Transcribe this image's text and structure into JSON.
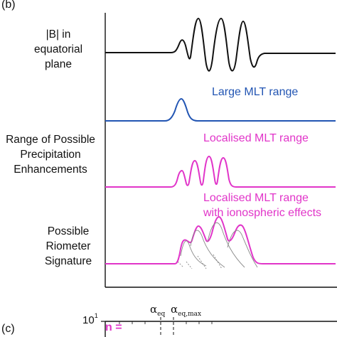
{
  "panel_b": {
    "label": "(b)"
  },
  "panel_c": {
    "label": "(c)"
  },
  "rows": {
    "b_field": {
      "lines": [
        "|B| in",
        "equatorial",
        "plane"
      ]
    },
    "large_mlt": {
      "label": "Large MLT range",
      "color": "#2255b3"
    },
    "localised_mlt": {
      "label": "Localised MLT range",
      "color": "#e135c9"
    },
    "precip": {
      "lines": [
        "Range of Possible",
        "Precipitation",
        "Enhancements"
      ]
    },
    "iono": {
      "lines": [
        "Localised MLT range",
        "with ionospheric effects"
      ],
      "color": "#e135c9"
    },
    "riometer": {
      "lines": [
        "Possible",
        "Riometer",
        "Signature"
      ]
    }
  },
  "bottom": {
    "tick_base": "10",
    "tick_exp": "1",
    "alpha_eq": "eq",
    "alpha_eq_max": "eq,max",
    "n_label": "n ="
  },
  "colors": {
    "black": "#111111",
    "blue": "#2255b3",
    "magenta": "#e135c9",
    "grey": "#888888"
  }
}
